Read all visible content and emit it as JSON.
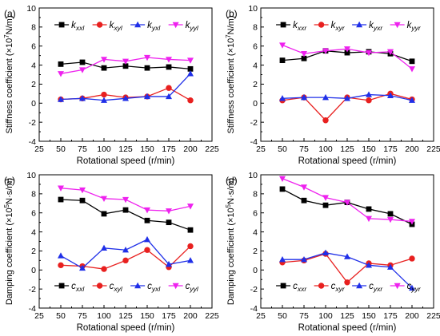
{
  "chart_data": [
    {
      "panel_label": "(a)",
      "type": "line",
      "ylabel_main": "Stiffness coefficient (×10",
      "ylabel_exp": "7",
      "ylabel_unit": "N/m)",
      "xlabel": "Rotational speed (r/min)",
      "xlim": [
        25,
        225
      ],
      "xticks": [
        25,
        50,
        75,
        100,
        125,
        150,
        175,
        200,
        225
      ],
      "ylim": [
        -4,
        10
      ],
      "yticks": [
        -4,
        -2,
        0,
        2,
        4,
        6,
        8,
        10
      ],
      "x": [
        50,
        75,
        100,
        125,
        150,
        175,
        200
      ],
      "series": [
        {
          "name": "kxxl",
          "label_base": "k",
          "label_sub": "xxl",
          "color": "#000000",
          "marker": "square",
          "values": [
            4.1,
            4.3,
            3.7,
            3.9,
            3.7,
            3.8,
            3.6
          ]
        },
        {
          "name": "kxyl",
          "label_base": "k",
          "label_sub": "xyl",
          "color": "#e8201f",
          "marker": "circle",
          "values": [
            0.4,
            0.5,
            0.9,
            0.6,
            0.7,
            1.6,
            0.3
          ]
        },
        {
          "name": "kyxl",
          "label_base": "k",
          "label_sub": "yxl",
          "color": "#1f2fe8",
          "marker": "triangle-up",
          "values": [
            0.4,
            0.5,
            0.3,
            0.5,
            0.7,
            0.7,
            3.1
          ]
        },
        {
          "name": "kyyl",
          "label_base": "k",
          "label_sub": "yyl",
          "color": "#ee22ee",
          "marker": "triangle-down",
          "values": [
            3.1,
            3.5,
            4.6,
            4.4,
            4.8,
            4.6,
            4.5
          ]
        }
      ],
      "legend_position": "top"
    },
    {
      "panel_label": "(b)",
      "type": "line",
      "ylabel_main": "Stiffness coefficient (×10",
      "ylabel_exp": "7",
      "ylabel_unit": "N/m)",
      "xlabel": "Rotational speed (r/min)",
      "xlim": [
        25,
        225
      ],
      "xticks": [
        25,
        50,
        75,
        100,
        125,
        150,
        175,
        200,
        225
      ],
      "ylim": [
        -4,
        10
      ],
      "yticks": [
        -4,
        -2,
        0,
        2,
        4,
        6,
        8,
        10
      ],
      "x": [
        50,
        75,
        100,
        125,
        150,
        175,
        200
      ],
      "series": [
        {
          "name": "kxxr",
          "label_base": "k",
          "label_sub": "xxr",
          "color": "#000000",
          "marker": "square",
          "values": [
            4.5,
            4.7,
            5.5,
            5.3,
            5.4,
            5.2,
            4.4
          ]
        },
        {
          "name": "kxyr",
          "label_base": "k",
          "label_sub": "xyr",
          "color": "#e8201f",
          "marker": "circle",
          "values": [
            0.3,
            0.6,
            -1.8,
            0.6,
            0.3,
            1.0,
            0.4
          ]
        },
        {
          "name": "kyxr",
          "label_base": "k",
          "label_sub": "yxr",
          "color": "#1f2fe8",
          "marker": "triangle-up",
          "values": [
            0.5,
            0.6,
            0.6,
            0.5,
            0.9,
            0.8,
            0.3
          ]
        },
        {
          "name": "kyyr",
          "label_base": "k",
          "label_sub": "yyr",
          "color": "#ee22ee",
          "marker": "triangle-down",
          "values": [
            6.1,
            5.2,
            5.5,
            5.7,
            5.3,
            5.4,
            3.6
          ]
        }
      ],
      "legend_position": "top"
    },
    {
      "panel_label": "(c)",
      "type": "line",
      "ylabel_main": "Damping coefficient (×10",
      "ylabel_exp": "5",
      "ylabel_unit": "N·s/m)",
      "xlabel": "Rotational speed (r/min)",
      "xlim": [
        25,
        225
      ],
      "xticks": [
        25,
        50,
        75,
        100,
        125,
        150,
        175,
        200,
        225
      ],
      "ylim": [
        -4,
        10
      ],
      "yticks": [
        -4,
        -2,
        0,
        2,
        4,
        6,
        8,
        10
      ],
      "x": [
        50,
        75,
        100,
        125,
        150,
        175,
        200
      ],
      "series": [
        {
          "name": "cxxl",
          "label_base": "c",
          "label_sub": "xxl",
          "color": "#000000",
          "marker": "square",
          "values": [
            7.4,
            7.3,
            5.9,
            6.3,
            5.2,
            5.0,
            4.2
          ]
        },
        {
          "name": "cxyl",
          "label_base": "c",
          "label_sub": "xyl",
          "color": "#e8201f",
          "marker": "circle",
          "values": [
            0.5,
            0.4,
            0.1,
            1.0,
            2.1,
            0.3,
            2.5
          ]
        },
        {
          "name": "cyxl",
          "label_base": "c",
          "label_sub": "yxl",
          "color": "#1f2fe8",
          "marker": "triangle-up",
          "values": [
            1.5,
            0.2,
            2.3,
            2.1,
            3.2,
            0.6,
            1.0
          ]
        },
        {
          "name": "cyyl",
          "label_base": "c",
          "label_sub": "yyl",
          "color": "#ee22ee",
          "marker": "triangle-down",
          "values": [
            8.6,
            8.4,
            7.5,
            7.4,
            6.3,
            6.2,
            6.7
          ]
        }
      ],
      "legend_position": "bottom"
    },
    {
      "panel_label": "(d)",
      "type": "line",
      "ylabel_main": "Damping coefficient (×10",
      "ylabel_exp": "5",
      "ylabel_unit": "N·s/m)",
      "xlabel": "Rotational speed (r/min)",
      "xlim": [
        25,
        225
      ],
      "xticks": [
        25,
        50,
        75,
        100,
        125,
        150,
        175,
        200,
        225
      ],
      "ylim": [
        -4,
        10
      ],
      "yticks": [
        -4,
        -2,
        0,
        2,
        4,
        6,
        8,
        10
      ],
      "x": [
        50,
        75,
        100,
        125,
        150,
        175,
        200
      ],
      "series": [
        {
          "name": "cxxr",
          "label_base": "c",
          "label_sub": "xxr",
          "color": "#000000",
          "marker": "square",
          "values": [
            8.5,
            7.3,
            6.8,
            7.1,
            6.4,
            5.9,
            4.8
          ]
        },
        {
          "name": "cxyr",
          "label_base": "c",
          "label_sub": "xyr",
          "color": "#e8201f",
          "marker": "circle",
          "values": [
            0.8,
            1.0,
            1.7,
            -1.3,
            0.7,
            0.5,
            1.2
          ]
        },
        {
          "name": "cyxr",
          "label_base": "c",
          "label_sub": "yxr",
          "color": "#1f2fe8",
          "marker": "triangle-up",
          "values": [
            1.1,
            1.1,
            1.8,
            1.4,
            0.5,
            0.3,
            -1.9
          ]
        },
        {
          "name": "cyyr",
          "label_base": "c",
          "label_sub": "yyr",
          "color": "#ee22ee",
          "marker": "triangle-down",
          "values": [
            9.6,
            8.7,
            7.6,
            7.1,
            5.4,
            5.3,
            5.1
          ]
        }
      ],
      "legend_position": "bottom"
    }
  ]
}
